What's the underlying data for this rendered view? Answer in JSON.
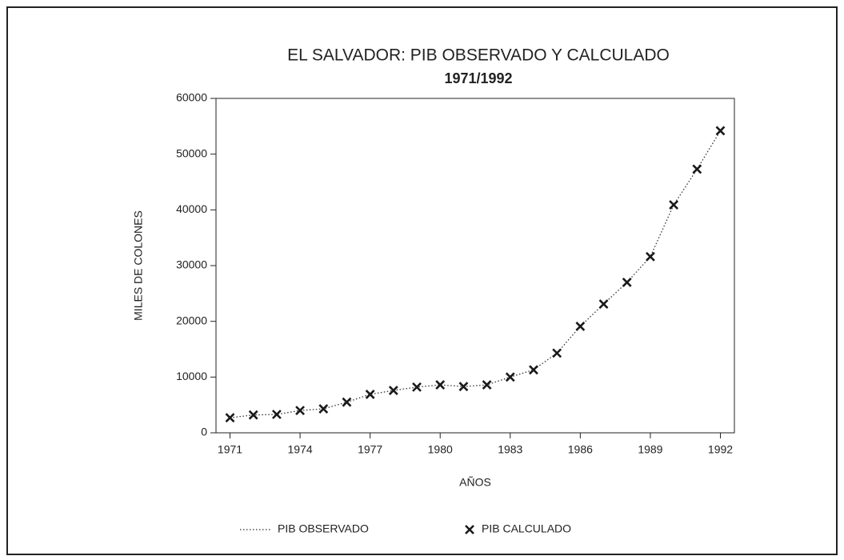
{
  "chart_data": {
    "type": "line",
    "title": "EL SALVADOR: PIB OBSERVADO Y CALCULADO",
    "subtitle": "1971/1992",
    "x_label": "AÑOS",
    "y_label": "MILES DE COLONES",
    "x": [
      1971,
      1972,
      1973,
      1974,
      1975,
      1976,
      1977,
      1978,
      1979,
      1980,
      1981,
      1982,
      1983,
      1984,
      1985,
      1986,
      1987,
      1988,
      1989,
      1990,
      1991,
      1992
    ],
    "series": [
      {
        "name": "PIB OBSERVADO",
        "color": "#333333",
        "line_style": "dotted",
        "marker": "none",
        "values": [
          2700,
          3200,
          3300,
          4000,
          4300,
          5500,
          6900,
          7600,
          8200,
          8600,
          8300,
          8600,
          10000,
          11300,
          14300,
          19100,
          23100,
          27000,
          31600,
          40900,
          47300,
          54200
        ]
      },
      {
        "name": "PIB CALCULADO",
        "color": "#1a1a1a",
        "line_style": "none",
        "marker": "x",
        "values": [
          2700,
          3200,
          3300,
          4000,
          4300,
          5500,
          6900,
          7600,
          8200,
          8600,
          8300,
          8600,
          10000,
          11300,
          14300,
          19100,
          23100,
          27000,
          31600,
          40900,
          47300,
          54200
        ]
      }
    ],
    "xlim": [
      1970.4,
      1992.6
    ],
    "xticks": [
      1971,
      1974,
      1977,
      1980,
      1983,
      1986,
      1989,
      1992
    ],
    "ylim": [
      0,
      60000
    ],
    "yticks": [
      0,
      10000,
      20000,
      30000,
      40000,
      50000,
      60000
    ],
    "legend": "bottom"
  }
}
